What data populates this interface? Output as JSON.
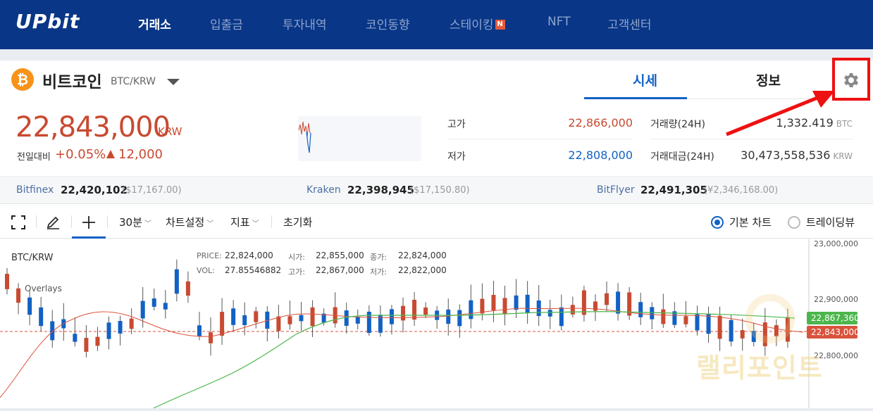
{
  "nav": {
    "logo": "UPbit",
    "items": [
      {
        "label": "거래소",
        "active": true
      },
      {
        "label": "입출금"
      },
      {
        "label": "투자내역"
      },
      {
        "label": "코인동향"
      },
      {
        "label": "스테이킹",
        "badge": "N"
      },
      {
        "label": "NFT"
      },
      {
        "label": "고객센터"
      }
    ]
  },
  "coin": {
    "icon_symbol": "₿",
    "name": "비트코인",
    "pair": "BTC/KRW",
    "icon": "caret-down-icon"
  },
  "tabs": {
    "sise": "시세",
    "info": "정보",
    "settings_icon": "gear-icon"
  },
  "price": {
    "current": "22,843,000",
    "unit": "KRW",
    "change_label": "전일대비",
    "change_pct": "+0.05%",
    "change_amount": "12,000",
    "color": "#c84a31"
  },
  "stats": {
    "high_label": "고가",
    "high": "22,866,000",
    "low_label": "저가",
    "low": "22,808,000",
    "volume_label": "거래량(24H)",
    "volume": "1,332.419",
    "volume_unit": "BTC",
    "amount_label": "거래대금(24H)",
    "amount": "30,473,558,536",
    "amount_unit": "KRW"
  },
  "exchanges": [
    {
      "name": "Bitfinex",
      "value": "22,420,102",
      "sub": "($17,167.00)"
    },
    {
      "name": "Kraken",
      "value": "22,398,945",
      "sub": "($17,150.80)"
    },
    {
      "name": "BitFlyer",
      "value": "22,491,305",
      "sub": "(¥2,346,168.00)"
    }
  ],
  "toolbar": {
    "expand_icon": "fullscreen-icon",
    "pencil_icon": "pencil-icon",
    "crosshair_icon": "crosshair-icon",
    "interval": "30분",
    "chart_settings": "차트설정",
    "indicators": "지표",
    "reset": "초기화",
    "basic_chart": "기본 차트",
    "tradingview": "트레이딩뷰"
  },
  "chart_overlay": {
    "symbol": "BTC/KRW",
    "overlays": "Overlays",
    "price_label": "PRICE:",
    "price": "22,824,000",
    "vol_label": "VOL:",
    "vol": "27.85546882",
    "open_label": "시가:",
    "open": "22,855,000",
    "high_label": "고가:",
    "high": "22,867,000",
    "close_label": "종가:",
    "close": "22,824,000",
    "low_label": "저가:",
    "low": "22,822,000"
  },
  "axis": {
    "ticks": [
      "23,000,000",
      "22,900,000",
      "22,800,000"
    ],
    "green_tag": "22,867,360",
    "red_tag": "22,843,000"
  },
  "watermark": "랠리포인트",
  "colors": {
    "up": "#c84a31",
    "down": "#1261c4",
    "ma_short": "#d9533c",
    "ma_long": "#4cb64c",
    "highlight": "#ee1111"
  }
}
